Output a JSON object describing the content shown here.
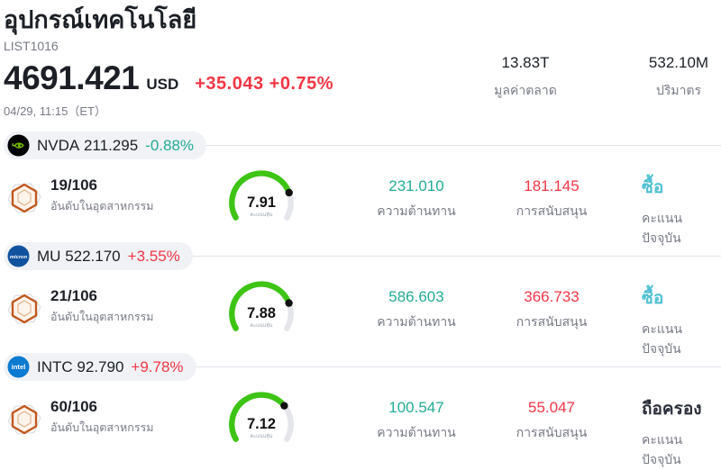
{
  "header": {
    "title": "อุปกรณ์เทคโนโลยี",
    "symbol_code": "LIST1016",
    "price": "4691.421",
    "currency": "USD",
    "change": "+35.043 +0.75%",
    "change_color": "#f23645",
    "datetime": "04/29, 11:15（ET）",
    "market_cap": {
      "value": "13.83T",
      "label": "มูลค่าตลาด"
    },
    "volume": {
      "value": "532.10M",
      "label": "ปริมาตร"
    }
  },
  "labels": {
    "rank": "อันดับในอุตสาหกรรม",
    "gauge": "คะแนนหุ้น",
    "resistance": "ความต้านทาน",
    "support": "การสนับสนุน",
    "signal": "คะแนนปัจจุบัน"
  },
  "colors": {
    "teal": "#22ab94",
    "red": "#f23645",
    "buy": "#4ec1d3",
    "hold": "#2a2e39",
    "gauge_green": "#3dc414",
    "gauge_track": "#e4e6eb"
  },
  "rows": [
    {
      "ticker": "NVDA",
      "price": "211.295",
      "change": "-0.88%",
      "change_color": "#22ab94",
      "rank": "19/106",
      "score": "7.91",
      "score_value": 7.91,
      "resistance": "231.010",
      "support": "181.145",
      "signal": "ซื้อ",
      "signal_color": "#4ec1d3"
    },
    {
      "ticker": "MU",
      "price": "522.170",
      "change": "+3.55%",
      "change_color": "#f23645",
      "rank": "21/106",
      "score": "7.88",
      "score_value": 7.88,
      "resistance": "586.603",
      "support": "366.733",
      "signal": "ซื้อ",
      "signal_color": "#4ec1d3"
    },
    {
      "ticker": "INTC",
      "price": "92.790",
      "change": "+9.78%",
      "change_color": "#f23645",
      "rank": "60/106",
      "score": "7.12",
      "score_value": 7.12,
      "resistance": "100.547",
      "support": "55.047",
      "signal": "ถือครอง",
      "signal_color": "#2a2e39"
    }
  ]
}
